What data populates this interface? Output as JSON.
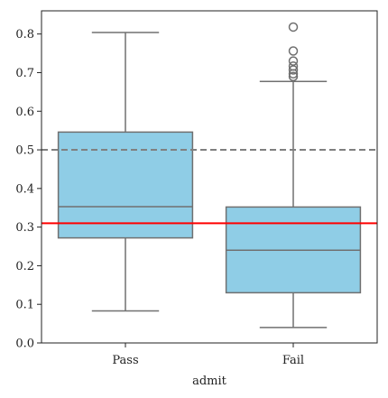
{
  "chart_data": {
    "type": "box",
    "title": "",
    "xlabel": "admit",
    "ylabel": "",
    "categories": [
      "Pass",
      "Fail"
    ],
    "ylim": [
      0.0,
      0.86
    ],
    "yticks": [
      0.0,
      0.1,
      0.2,
      0.3,
      0.4,
      0.5,
      0.6,
      0.7,
      0.8
    ],
    "ytick_labels": [
      "0.0",
      "0.1",
      "0.2",
      "0.3",
      "0.4",
      "0.5",
      "0.6",
      "0.7",
      "0.8"
    ],
    "boxes": [
      {
        "category": "Pass",
        "whisker_low": 0.083,
        "q1": 0.272,
        "median": 0.353,
        "q3": 0.546,
        "whisker_high": 0.804,
        "outliers": []
      },
      {
        "category": "Fail",
        "whisker_low": 0.04,
        "q1": 0.13,
        "median": 0.24,
        "q3": 0.352,
        "whisker_high": 0.677,
        "outliers": [
          0.69,
          0.697,
          0.707,
          0.717,
          0.73,
          0.756,
          0.818
        ]
      }
    ],
    "reference_lines": [
      {
        "value": 0.5,
        "style": "dashed",
        "color": "#808080"
      },
      {
        "value": 0.31,
        "style": "solid",
        "color": "#ff0000"
      }
    ],
    "grid": false,
    "legend": "none",
    "colors": {
      "box_fill": "#8fcde6",
      "box_edge": "#707070",
      "outlier_edge": "#707070"
    }
  }
}
